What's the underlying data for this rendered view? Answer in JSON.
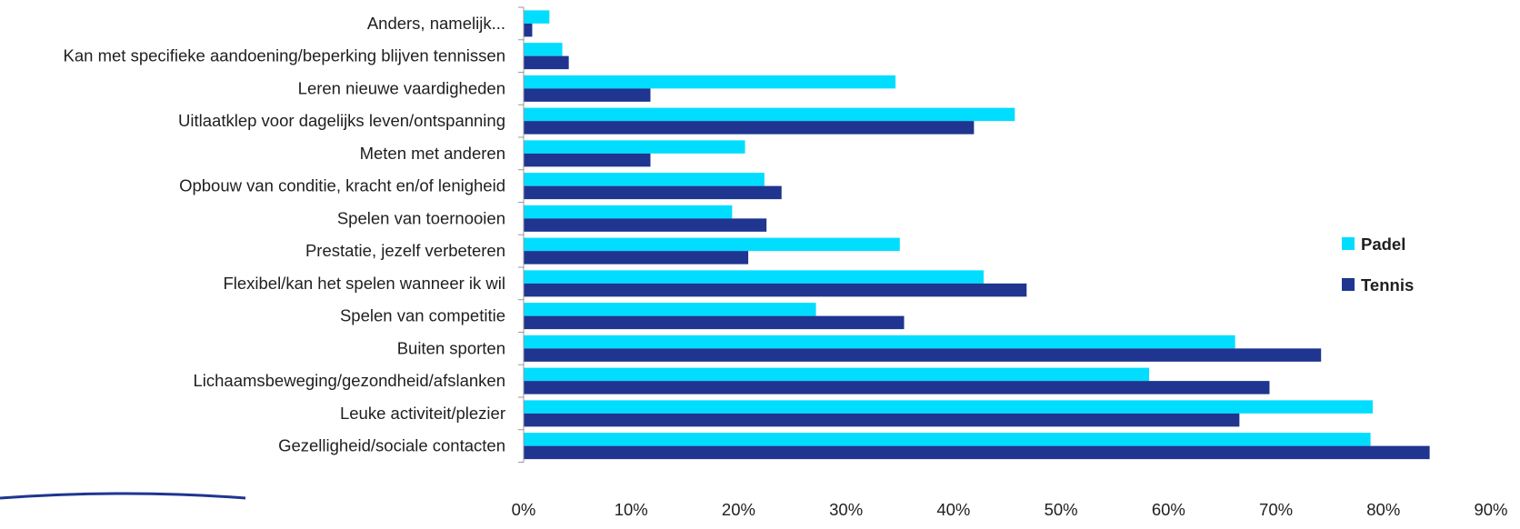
{
  "chart_data": {
    "type": "bar",
    "orientation": "horizontal",
    "categories": [
      "Anders, namelijk...",
      "Kan met specifieke aandoening/beperking blijven tennissen",
      "Leren nieuwe vaardigheden",
      "Uitlaatklep voor dagelijks leven/ontspanning",
      "Meten met anderen",
      "Opbouw van conditie, kracht en/of lenigheid",
      "Spelen van toernooien",
      "Prestatie, jezelf verbeteren",
      "Flexibel/kan het spelen wanneer ik wil",
      "Spelen van competitie",
      "Buiten sporten",
      "Lichaamsbeweging/gezondheid/afslanken",
      "Leuke activiteit/plezier",
      "Gezelligheid/sociale contacten"
    ],
    "series": [
      {
        "name": "Padel",
        "color": "#00DDFF",
        "values": [
          2.4,
          3.6,
          34.6,
          45.7,
          20.6,
          22.4,
          19.4,
          35.0,
          42.8,
          27.2,
          66.2,
          58.2,
          79.0,
          78.8
        ]
      },
      {
        "name": "Tennis",
        "color": "#1F3590",
        "values": [
          0.8,
          4.2,
          11.8,
          41.9,
          11.8,
          24.0,
          22.6,
          20.9,
          46.8,
          35.4,
          74.2,
          69.4,
          66.6,
          84.3
        ]
      }
    ],
    "xlim": [
      0,
      90
    ],
    "xticks": [
      "0%",
      "10%",
      "20%",
      "30%",
      "40%",
      "50%",
      "60%",
      "70%",
      "80%",
      "90%"
    ],
    "legend_position": "right",
    "title": "",
    "xlabel": "",
    "ylabel": ""
  }
}
